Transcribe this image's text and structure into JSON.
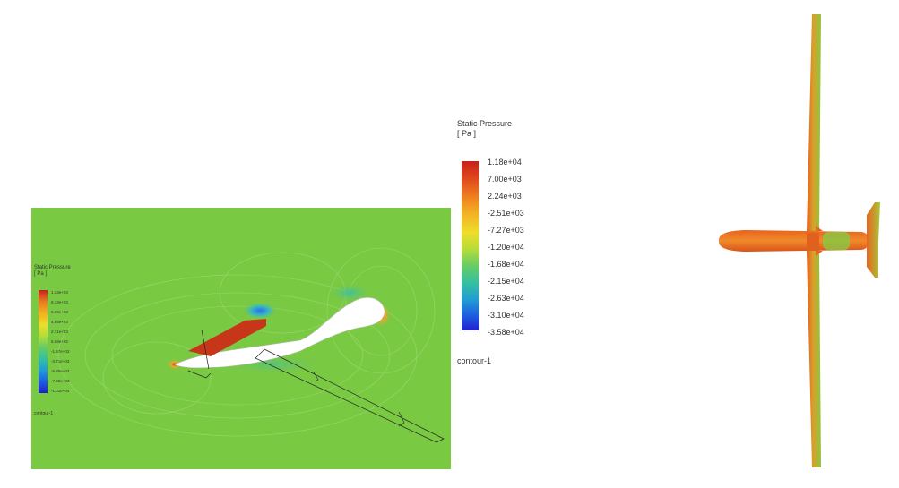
{
  "legend": {
    "title": "Static Pressure",
    "unit": "[ Pa ]",
    "values": [
      "1.18e+04",
      "7.00e+03",
      "2.24e+03",
      "-2.51e+03",
      "-7.27e+03",
      "-1.20e+04",
      "-1.68e+04",
      "-2.15e+04",
      "-2.63e+04",
      "-3.10e+04",
      "-3.58e+04"
    ],
    "caption": "contour-1",
    "colors": [
      "#c8201c",
      "#e0461c",
      "#ec7a1e",
      "#f3ae22",
      "#eedd2a",
      "#b5dd38",
      "#66cc66",
      "#33c0a0",
      "#229cd4",
      "#1d5ee0",
      "#2020d0"
    ]
  },
  "inset_legend": {
    "title": "Static Pressure",
    "unit": "[ Pa ]",
    "values": [
      "1.13e+04",
      "9.13e+03",
      "6.99e+03",
      "4.85e+03",
      "2.71e+03",
      "5.68e+02",
      "-1.57e+03",
      "-3.71e+03",
      "-5.85e+03",
      "-7.99e+03",
      "-1.01e+04"
    ],
    "caption": "contour-1"
  },
  "colors": {
    "field_green": "#7ac943",
    "high_pressure": "#c8361a",
    "aircraft_orange": "#e8641f",
    "aircraft_green": "#8cc63f"
  }
}
